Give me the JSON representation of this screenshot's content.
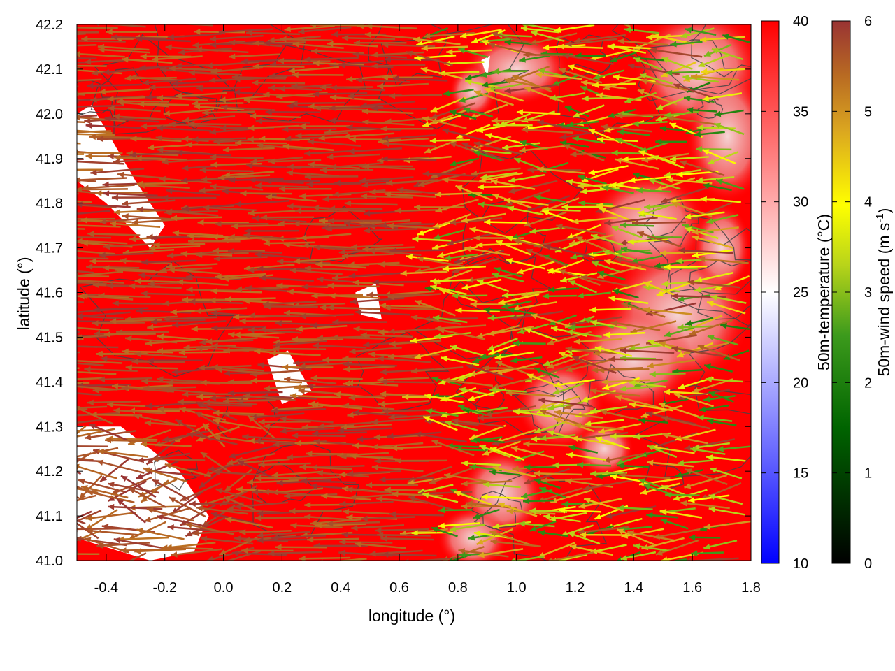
{
  "chart_data": {
    "type": "heatmap",
    "title": "",
    "xlabel": "longitude (°)",
    "ylabel": "latitude (°)",
    "xlim": [
      -0.5,
      1.8
    ],
    "ylim": [
      41.0,
      42.2
    ],
    "xticks": [
      -0.4,
      -0.2,
      0.0,
      0.2,
      0.4,
      0.6,
      0.8,
      1.0,
      1.2,
      1.4,
      1.6,
      1.8
    ],
    "yticks": [
      41.0,
      41.1,
      41.2,
      41.3,
      41.4,
      41.5,
      41.6,
      41.7,
      41.8,
      41.9,
      42.0,
      42.1,
      42.2
    ],
    "xtick_labels": [
      "-0.4",
      "-0.2",
      "0.0",
      "0.2",
      "0.4",
      "0.6",
      "0.8",
      "1.0",
      "1.2",
      "1.4",
      "1.6",
      "1.8"
    ],
    "ytick_labels": [
      "41.0",
      "41.1",
      "41.2",
      "41.3",
      "41.4",
      "41.5",
      "41.6",
      "41.7",
      "41.8",
      "41.9",
      "42.0",
      "42.1",
      "42.2"
    ],
    "temperature_colorbar": {
      "label": "50m-temperature (°C)",
      "range": [
        10,
        40
      ],
      "ticks": [
        10,
        15,
        20,
        25,
        30,
        35,
        40
      ],
      "tick_labels": [
        "10",
        "15",
        "20",
        "25",
        "30",
        "35",
        "40"
      ],
      "colors": [
        "#0000ff",
        "#ffffff",
        "#ff0000"
      ]
    },
    "wind_colorbar": {
      "label_main": "50m-wind speed (m s",
      "label_sup": "-1",
      "label_end": ")",
      "range": [
        0,
        6
      ],
      "ticks": [
        0,
        1,
        2,
        3,
        4,
        5,
        6
      ],
      "tick_labels": [
        "0",
        "1",
        "2",
        "3",
        "4",
        "5",
        "6"
      ],
      "colors": [
        "#000000",
        "#006400",
        "#228b22",
        "#9acd32",
        "#ffff00",
        "#daa520",
        "#b8860b",
        "#a52a2a",
        "#993333"
      ]
    },
    "field_description": {
      "temperature_regions": [
        {
          "lon": [
            -0.5,
            0.9
          ],
          "lat": [
            41.0,
            42.2
          ],
          "temperature_C": 39
        },
        {
          "lon": [
            1.2,
            1.8
          ],
          "lat": [
            41.3,
            42.2
          ],
          "temperature_C": 32
        },
        {
          "lon": [
            0.7,
            1.1
          ],
          "lat": [
            41.0,
            41.2
          ],
          "temperature_C": 33
        }
      ],
      "prevailing_wind_direction": "from east",
      "wind_speed_range": [
        0,
        6
      ]
    },
    "grid": false
  }
}
